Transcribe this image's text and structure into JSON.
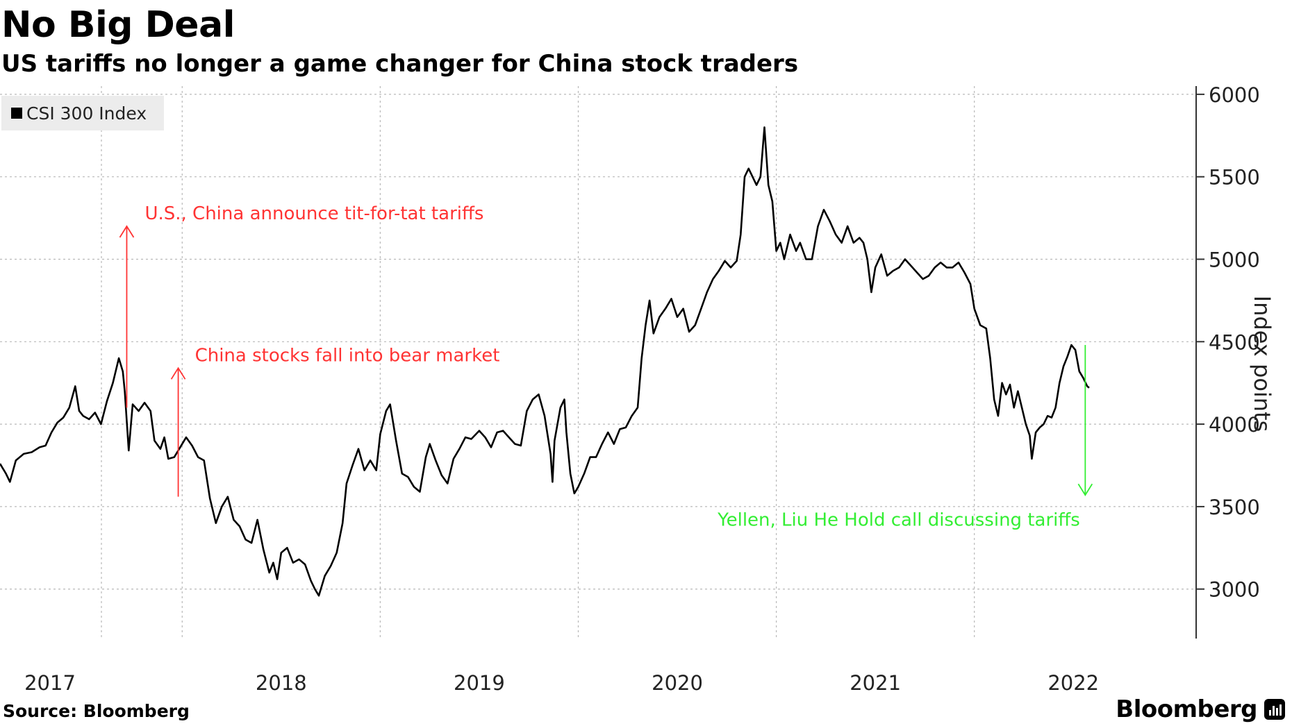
{
  "colors": {
    "line": "#000000",
    "grid": "#b8b8b8",
    "ann_red": "#ff3333",
    "ann_green": "#33ee33",
    "legend_bg": "#ececec"
  },
  "source": "Source: Bloomberg",
  "brand": "Bloomberg",
  "brand_icon": "bloomberg-bars-icon",
  "chart_data": {
    "type": "line",
    "title": "No Big Deal",
    "subtitle": "US tariffs no longer a game changer for China stock traders",
    "ylabel": "Index points",
    "xlabel": "",
    "ylim": [
      2700,
      6050
    ],
    "xlim": [
      2016.58,
      2022.62
    ],
    "yticks": [
      3000,
      3500,
      4000,
      4500,
      5000,
      5500,
      6000
    ],
    "xticks": [
      {
        "label": "2017",
        "value": 2017.0
      },
      {
        "label": "2018",
        "value": 2018.0
      },
      {
        "label": "2019",
        "value": 2019.0
      },
      {
        "label": "2020",
        "value": 2020.0
      },
      {
        "label": "2021",
        "value": 2021.0
      },
      {
        "label": "2022",
        "value": 2022.0
      }
    ],
    "legend": [
      {
        "name": "CSI 300 Index",
        "position": "top-left"
      }
    ],
    "grid": true,
    "series": [
      {
        "name": "CSI 300 Index",
        "points": [
          [
            2016.58,
            3760
          ],
          [
            2016.61,
            3700
          ],
          [
            2016.63,
            3650
          ],
          [
            2016.66,
            3780
          ],
          [
            2016.7,
            3820
          ],
          [
            2016.74,
            3830
          ],
          [
            2016.78,
            3860
          ],
          [
            2016.81,
            3870
          ],
          [
            2016.84,
            3950
          ],
          [
            2016.87,
            4010
          ],
          [
            2016.9,
            4040
          ],
          [
            2016.93,
            4100
          ],
          [
            2016.96,
            4230
          ],
          [
            2016.98,
            4080
          ],
          [
            2017.0,
            4050
          ],
          [
            2017.03,
            4030
          ],
          [
            2017.06,
            4070
          ],
          [
            2017.09,
            4000
          ],
          [
            2017.12,
            4140
          ],
          [
            2017.15,
            4250
          ],
          [
            2017.18,
            4400
          ],
          [
            2017.2,
            4320
          ],
          [
            2017.21,
            4200
          ],
          [
            2017.23,
            3840
          ],
          [
            2017.25,
            4120
          ],
          [
            2017.28,
            4080
          ],
          [
            2017.31,
            4130
          ],
          [
            2017.34,
            4080
          ],
          [
            2017.36,
            3900
          ],
          [
            2017.39,
            3850
          ],
          [
            2017.41,
            3920
          ],
          [
            2017.43,
            3790
          ],
          [
            2017.46,
            3800
          ],
          [
            2017.49,
            3860
          ],
          [
            2017.52,
            3920
          ],
          [
            2017.55,
            3870
          ],
          [
            2017.58,
            3800
          ],
          [
            2017.61,
            3780
          ],
          [
            2017.64,
            3550
          ],
          [
            2017.67,
            3400
          ],
          [
            2017.7,
            3500
          ],
          [
            2017.73,
            3560
          ],
          [
            2017.76,
            3420
          ],
          [
            2017.79,
            3380
          ],
          [
            2017.82,
            3300
          ],
          [
            2017.85,
            3280
          ],
          [
            2017.88,
            3420
          ],
          [
            2017.91,
            3240
          ],
          [
            2017.94,
            3100
          ],
          [
            2017.96,
            3160
          ],
          [
            2017.98,
            3060
          ],
          [
            2018.0,
            3220
          ],
          [
            2018.03,
            3250
          ],
          [
            2018.06,
            3160
          ],
          [
            2018.09,
            3180
          ],
          [
            2018.12,
            3150
          ],
          [
            2018.15,
            3050
          ],
          [
            2018.17,
            3000
          ],
          [
            2018.19,
            2960
          ],
          [
            2018.22,
            3080
          ],
          [
            2018.25,
            3140
          ],
          [
            2018.28,
            3220
          ],
          [
            2018.31,
            3400
          ],
          [
            2018.33,
            3640
          ],
          [
            2018.36,
            3750
          ],
          [
            2018.39,
            3850
          ],
          [
            2018.42,
            3720
          ],
          [
            2018.45,
            3780
          ],
          [
            2018.48,
            3720
          ],
          [
            2018.5,
            3940
          ],
          [
            2018.53,
            4080
          ],
          [
            2018.55,
            4120
          ],
          [
            2018.58,
            3900
          ],
          [
            2018.61,
            3700
          ],
          [
            2018.64,
            3680
          ],
          [
            2018.67,
            3620
          ],
          [
            2018.7,
            3590
          ],
          [
            2018.73,
            3800
          ],
          [
            2018.75,
            3880
          ],
          [
            2018.78,
            3780
          ],
          [
            2018.81,
            3690
          ],
          [
            2018.84,
            3640
          ],
          [
            2018.87,
            3790
          ],
          [
            2018.9,
            3850
          ],
          [
            2018.93,
            3920
          ],
          [
            2018.96,
            3910
          ],
          [
            2019.0,
            3960
          ],
          [
            2019.03,
            3920
          ],
          [
            2019.06,
            3860
          ],
          [
            2019.09,
            3950
          ],
          [
            2019.12,
            3960
          ],
          [
            2019.15,
            3920
          ],
          [
            2019.18,
            3880
          ],
          [
            2019.21,
            3870
          ],
          [
            2019.24,
            4080
          ],
          [
            2019.27,
            4150
          ],
          [
            2019.3,
            4180
          ],
          [
            2019.33,
            4050
          ],
          [
            2019.36,
            3820
          ],
          [
            2019.37,
            3650
          ],
          [
            2019.38,
            3900
          ],
          [
            2019.41,
            4100
          ],
          [
            2019.43,
            4150
          ],
          [
            2019.44,
            3950
          ],
          [
            2019.46,
            3700
          ],
          [
            2019.48,
            3580
          ],
          [
            2019.5,
            3620
          ],
          [
            2019.53,
            3700
          ],
          [
            2019.56,
            3800
          ],
          [
            2019.59,
            3800
          ],
          [
            2019.62,
            3880
          ],
          [
            2019.65,
            3950
          ],
          [
            2019.68,
            3880
          ],
          [
            2019.71,
            3970
          ],
          [
            2019.74,
            3980
          ],
          [
            2019.77,
            4050
          ],
          [
            2019.8,
            4100
          ],
          [
            2019.82,
            4400
          ],
          [
            2019.84,
            4600
          ],
          [
            2019.86,
            4750
          ],
          [
            2019.88,
            4550
          ],
          [
            2019.91,
            4650
          ],
          [
            2019.94,
            4700
          ],
          [
            2019.97,
            4760
          ],
          [
            2020.0,
            4650
          ],
          [
            2020.03,
            4700
          ],
          [
            2020.06,
            4560
          ],
          [
            2020.09,
            4600
          ],
          [
            2020.12,
            4700
          ],
          [
            2020.15,
            4800
          ],
          [
            2020.18,
            4880
          ],
          [
            2020.21,
            4930
          ],
          [
            2020.24,
            4990
          ],
          [
            2020.27,
            4950
          ],
          [
            2020.3,
            4990
          ],
          [
            2020.32,
            5150
          ],
          [
            2020.34,
            5500
          ],
          [
            2020.36,
            5550
          ],
          [
            2020.38,
            5500
          ],
          [
            2020.4,
            5450
          ],
          [
            2020.42,
            5500
          ],
          [
            2020.44,
            5800
          ],
          [
            2020.46,
            5450
          ],
          [
            2020.48,
            5350
          ],
          [
            2020.5,
            5050
          ],
          [
            2020.52,
            5100
          ],
          [
            2020.54,
            5000
          ],
          [
            2020.57,
            5150
          ],
          [
            2020.6,
            5050
          ],
          [
            2020.62,
            5100
          ],
          [
            2020.65,
            5000
          ],
          [
            2020.68,
            5000
          ],
          [
            2020.71,
            5200
          ],
          [
            2020.74,
            5300
          ],
          [
            2020.77,
            5230
          ],
          [
            2020.8,
            5150
          ],
          [
            2020.83,
            5100
          ],
          [
            2020.86,
            5200
          ],
          [
            2020.89,
            5100
          ],
          [
            2020.92,
            5130
          ],
          [
            2020.94,
            5100
          ],
          [
            2020.96,
            5000
          ],
          [
            2020.98,
            4800
          ],
          [
            2021.0,
            4950
          ],
          [
            2021.03,
            5030
          ],
          [
            2021.06,
            4900
          ],
          [
            2021.09,
            4930
          ],
          [
            2021.12,
            4950
          ],
          [
            2021.15,
            5000
          ],
          [
            2021.18,
            4960
          ],
          [
            2021.21,
            4920
          ],
          [
            2021.24,
            4880
          ],
          [
            2021.27,
            4900
          ],
          [
            2021.3,
            4950
          ],
          [
            2021.33,
            4980
          ],
          [
            2021.36,
            4950
          ],
          [
            2021.39,
            4950
          ],
          [
            2021.42,
            4980
          ],
          [
            2021.45,
            4920
          ],
          [
            2021.48,
            4850
          ],
          [
            2021.5,
            4700
          ],
          [
            2021.53,
            4600
          ],
          [
            2021.56,
            4580
          ],
          [
            2021.58,
            4400
          ],
          [
            2021.6,
            4150
          ],
          [
            2021.62,
            4050
          ],
          [
            2021.64,
            4250
          ],
          [
            2021.66,
            4180
          ],
          [
            2021.68,
            4240
          ],
          [
            2021.7,
            4100
          ],
          [
            2021.72,
            4200
          ],
          [
            2021.74,
            4100
          ],
          [
            2021.76,
            4000
          ],
          [
            2021.78,
            3930
          ],
          [
            2021.79,
            3790
          ],
          [
            2021.81,
            3950
          ],
          [
            2021.83,
            3980
          ],
          [
            2021.85,
            4000
          ],
          [
            2021.87,
            4050
          ],
          [
            2021.89,
            4040
          ],
          [
            2021.91,
            4100
          ],
          [
            2021.93,
            4250
          ],
          [
            2021.95,
            4350
          ],
          [
            2021.97,
            4410
          ],
          [
            2021.99,
            4480
          ],
          [
            2022.01,
            4450
          ],
          [
            2022.03,
            4320
          ],
          [
            2022.05,
            4280
          ],
          [
            2022.07,
            4230
          ],
          [
            2022.08,
            4220
          ]
        ]
      }
    ],
    "annotations": [
      {
        "text": "U.S., China announce tit-for-tat tariffs",
        "color": "red",
        "x": 2017.22,
        "from": 4100,
        "to": 5200
      },
      {
        "text": "China stocks fall into bear market",
        "color": "red",
        "x": 2017.48,
        "from": 3560,
        "to": 4340
      },
      {
        "text": "Yellen, Liu He Hold call discussing tariffs",
        "color": "green",
        "x": 2022.06,
        "from": 4480,
        "to": 3570
      }
    ]
  }
}
